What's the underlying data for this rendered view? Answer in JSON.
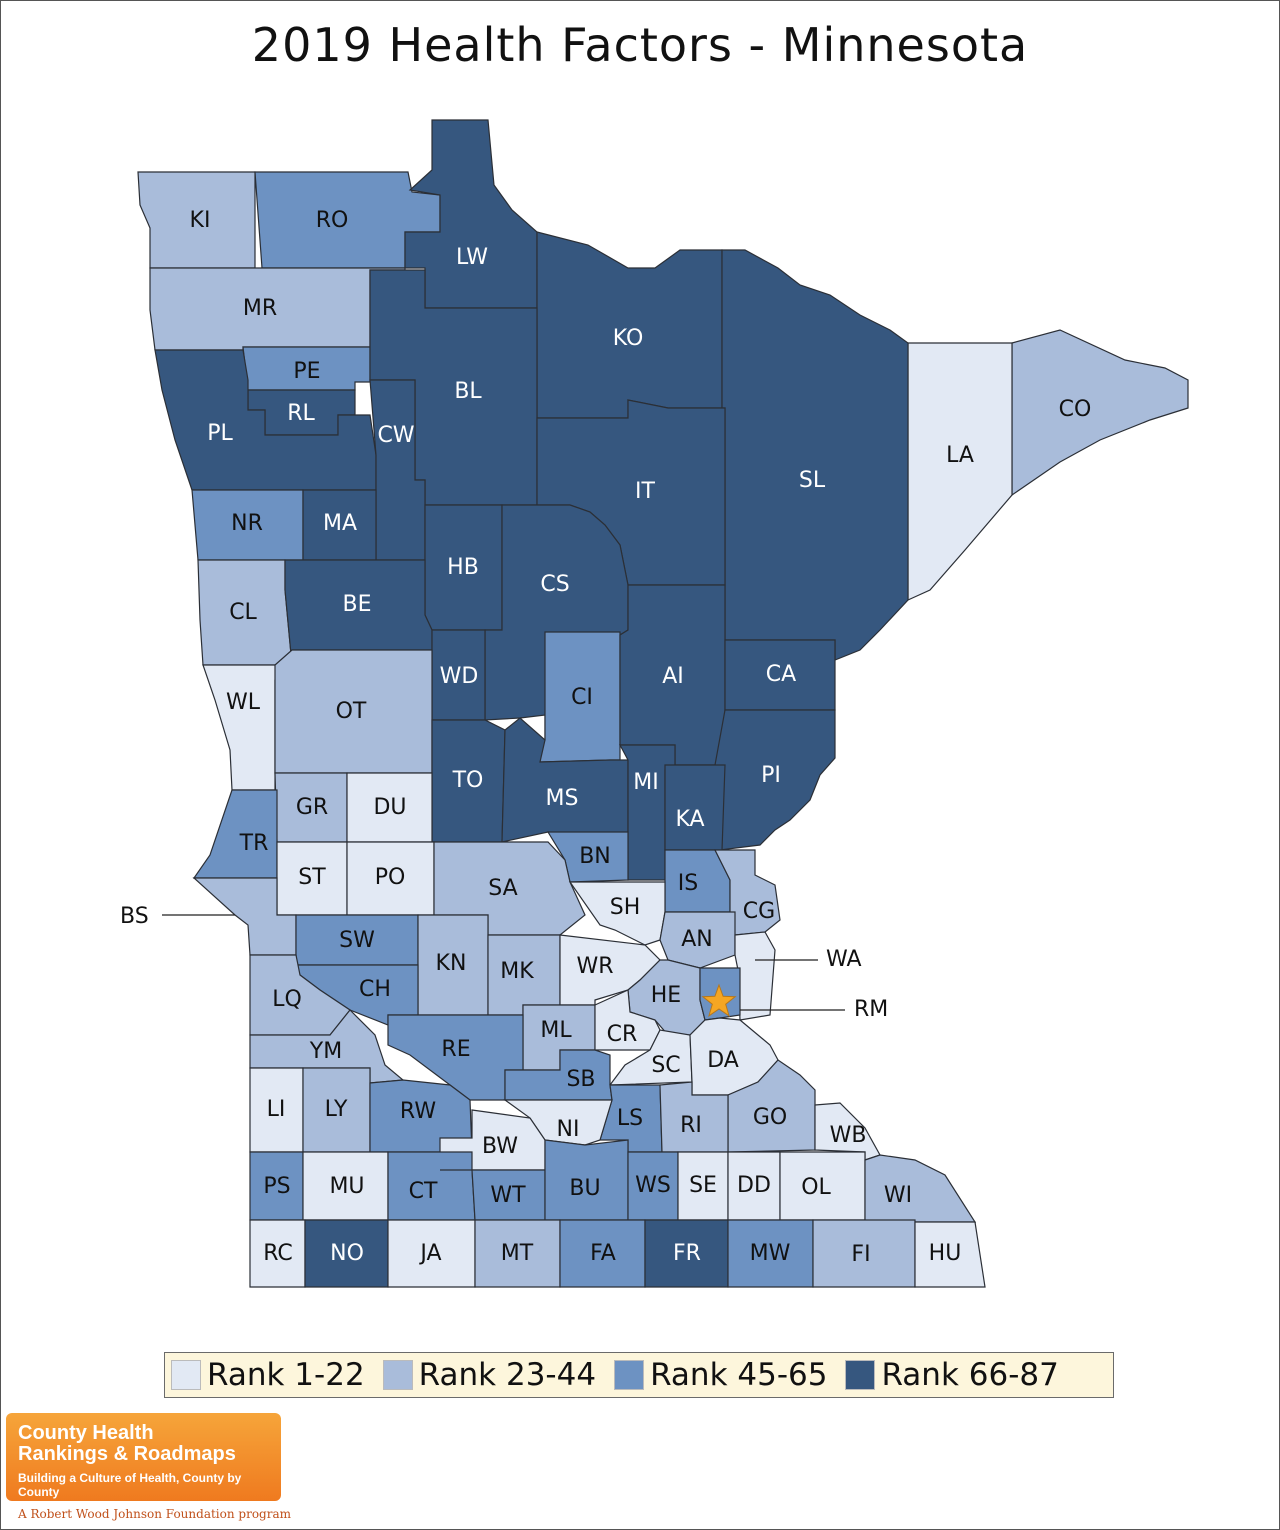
{
  "title": "2019 Health Factors - Minnesota",
  "colors": {
    "rank_1_22": "#e2e9f4",
    "rank_23_44": "#a9bcda",
    "rank_45_65": "#6d92c2",
    "rank_66_87": "#36577f",
    "star": "#f5a623"
  },
  "legend": [
    {
      "label": "Rank 1-22",
      "tier": 1
    },
    {
      "label": "Rank 23-44",
      "tier": 2
    },
    {
      "label": "Rank 45-65",
      "tier": 3
    },
    {
      "label": "Rank 66-87",
      "tier": 4
    }
  ],
  "counties": [
    {
      "code": "KI",
      "tier": 2
    },
    {
      "code": "RO",
      "tier": 3
    },
    {
      "code": "LW",
      "tier": 4
    },
    {
      "code": "MR",
      "tier": 2
    },
    {
      "code": "KO",
      "tier": 4
    },
    {
      "code": "PE",
      "tier": 3
    },
    {
      "code": "RL",
      "tier": 4
    },
    {
      "code": "PL",
      "tier": 4
    },
    {
      "code": "BL",
      "tier": 4
    },
    {
      "code": "CW",
      "tier": 4
    },
    {
      "code": "CO",
      "tier": 2
    },
    {
      "code": "LA",
      "tier": 1
    },
    {
      "code": "SL",
      "tier": 4
    },
    {
      "code": "IT",
      "tier": 4
    },
    {
      "code": "NR",
      "tier": 3
    },
    {
      "code": "MA",
      "tier": 4
    },
    {
      "code": "HB",
      "tier": 4
    },
    {
      "code": "CS",
      "tier": 4
    },
    {
      "code": "CL",
      "tier": 2
    },
    {
      "code": "BE",
      "tier": 4
    },
    {
      "code": "WD",
      "tier": 4
    },
    {
      "code": "CI",
      "tier": 3
    },
    {
      "code": "AI",
      "tier": 4
    },
    {
      "code": "CA",
      "tier": 4
    },
    {
      "code": "WL",
      "tier": 1
    },
    {
      "code": "OT",
      "tier": 2
    },
    {
      "code": "TO",
      "tier": 4
    },
    {
      "code": "MS",
      "tier": 4
    },
    {
      "code": "MI",
      "tier": 4
    },
    {
      "code": "PI",
      "tier": 4
    },
    {
      "code": "GR",
      "tier": 2
    },
    {
      "code": "DU",
      "tier": 1
    },
    {
      "code": "KA",
      "tier": 4
    },
    {
      "code": "TR",
      "tier": 3
    },
    {
      "code": "BN",
      "tier": 3
    },
    {
      "code": "ST",
      "tier": 1
    },
    {
      "code": "PO",
      "tier": 1
    },
    {
      "code": "SA",
      "tier": 2
    },
    {
      "code": "IS",
      "tier": 3
    },
    {
      "code": "SH",
      "tier": 1
    },
    {
      "code": "CG",
      "tier": 2
    },
    {
      "code": "BS",
      "tier": 2
    },
    {
      "code": "SW",
      "tier": 3
    },
    {
      "code": "AN",
      "tier": 2
    },
    {
      "code": "WA",
      "tier": 1
    },
    {
      "code": "KN",
      "tier": 2
    },
    {
      "code": "MK",
      "tier": 2
    },
    {
      "code": "WR",
      "tier": 1
    },
    {
      "code": "CH",
      "tier": 3
    },
    {
      "code": "LQ",
      "tier": 2
    },
    {
      "code": "HE",
      "tier": 2
    },
    {
      "code": "RM",
      "tier": 3
    },
    {
      "code": "ML",
      "tier": 2
    },
    {
      "code": "CR",
      "tier": 1
    },
    {
      "code": "RE",
      "tier": 3
    },
    {
      "code": "YM",
      "tier": 2
    },
    {
      "code": "SC",
      "tier": 1
    },
    {
      "code": "DA",
      "tier": 1
    },
    {
      "code": "SB",
      "tier": 3
    },
    {
      "code": "LI",
      "tier": 1
    },
    {
      "code": "LY",
      "tier": 2
    },
    {
      "code": "RW",
      "tier": 3
    },
    {
      "code": "GO",
      "tier": 2
    },
    {
      "code": "LS",
      "tier": 3
    },
    {
      "code": "RI",
      "tier": 2
    },
    {
      "code": "NI",
      "tier": 1
    },
    {
      "code": "WB",
      "tier": 1
    },
    {
      "code": "BW",
      "tier": 1
    },
    {
      "code": "PS",
      "tier": 3
    },
    {
      "code": "MU",
      "tier": 1
    },
    {
      "code": "CT",
      "tier": 3
    },
    {
      "code": "WT",
      "tier": 3
    },
    {
      "code": "BU",
      "tier": 3
    },
    {
      "code": "WS",
      "tier": 3
    },
    {
      "code": "SE",
      "tier": 1
    },
    {
      "code": "DD",
      "tier": 1
    },
    {
      "code": "OL",
      "tier": 1
    },
    {
      "code": "WI",
      "tier": 2
    },
    {
      "code": "RC",
      "tier": 1
    },
    {
      "code": "NO",
      "tier": 4
    },
    {
      "code": "JA",
      "tier": 1
    },
    {
      "code": "MT",
      "tier": 2
    },
    {
      "code": "FA",
      "tier": 3
    },
    {
      "code": "FR",
      "tier": 4
    },
    {
      "code": "MW",
      "tier": 3
    },
    {
      "code": "FI",
      "tier": 2
    },
    {
      "code": "HU",
      "tier": 1
    }
  ],
  "logo": {
    "line1": "County Health",
    "line2": "Rankings & Roadmaps",
    "tagline": "Building a Culture of Health, County by County",
    "program": "A Robert Wood Johnson Foundation program"
  }
}
